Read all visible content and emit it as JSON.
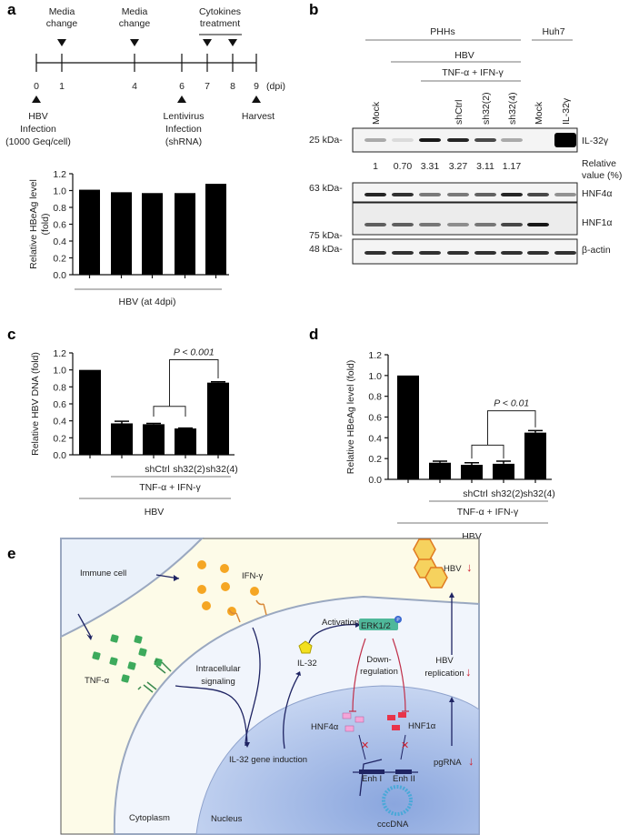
{
  "panel_labels": {
    "a": "a",
    "b": "b",
    "c": "c",
    "d": "d",
    "e": "e"
  },
  "timeline": {
    "days": [
      "0",
      "1",
      "4",
      "6",
      "7",
      "8",
      "9"
    ],
    "unit": "(dpi)",
    "top_events": [
      {
        "day": "1",
        "label": [
          "Media",
          "change"
        ]
      },
      {
        "day": "4",
        "label": [
          "Media",
          "change"
        ]
      },
      {
        "day": "7",
        "label": []
      },
      {
        "day": "8",
        "label": []
      }
    ],
    "cytokines_label": [
      "Cytokines",
      "treatment"
    ],
    "bottom_events": [
      {
        "day": "0",
        "label": [
          "HBV",
          "Infection",
          "(1000 Geq/cell)"
        ]
      },
      {
        "day": "6",
        "label": [
          "Lentivirus",
          "Infection",
          "(shRNA)"
        ]
      },
      {
        "day": "9",
        "label": [
          "Harvest"
        ]
      }
    ]
  },
  "western_blot": {
    "groups": {
      "phhs": "PHHs",
      "huh7": "Huh7",
      "hbv": "HBV",
      "cytokines": "TNF-α + IFN-γ"
    },
    "lanes": [
      "Mock",
      "",
      "",
      "shCtrl",
      "sh32(2)",
      "sh32(4)",
      "Mock",
      "IL-32γ"
    ],
    "markers": {
      "il32": "25 kDa-",
      "hnf4": "63 kDa-",
      "hnf1": "75 kDa-",
      "actin": "48 kDa-"
    },
    "bands": {
      "il32": "IL-32γ",
      "hnf4": "HNF4α",
      "hnf1": "HNF1α",
      "actin": "β-actin"
    },
    "relative_values": [
      "1",
      "0.70",
      "3.31",
      "3.27",
      "3.11",
      "1.17"
    ],
    "relative_label": [
      "Relative",
      "value (%)"
    ]
  },
  "chart_data": [
    {
      "panel": "a",
      "type": "bar",
      "categories": [
        "",
        "",
        "",
        "",
        ""
      ],
      "values": [
        1.01,
        0.98,
        0.97,
        0.97,
        1.08
      ],
      "ylabel": [
        "Relative HBeAg level",
        "(fold)"
      ],
      "xlabel": "HBV (at 4dpi)",
      "ylim": [
        0,
        1.2
      ],
      "yticks": [
        "0.0",
        "0.2",
        "0.4",
        "0.6",
        "0.8",
        "1.0",
        "1.2"
      ],
      "color": "#000000"
    },
    {
      "panel": "c",
      "type": "bar",
      "categories": [
        "",
        "",
        "shCtrl",
        "sh32(2)",
        "sh32(4)"
      ],
      "values": [
        1.0,
        0.37,
        0.36,
        0.31,
        0.85
      ],
      "errors": [
        0,
        0.025,
        0.01,
        0.005,
        0.01
      ],
      "ylabel": "Relative HBV DNA (fold)",
      "group_labels": [
        "TNF-α + IFN-γ",
        "HBV"
      ],
      "annotation": "P < 0.001",
      "ylim": [
        0,
        1.2
      ],
      "yticks": [
        "0.0",
        "0.2",
        "0.4",
        "0.6",
        "0.8",
        "1.0",
        "1.2"
      ],
      "color": "#000000"
    },
    {
      "panel": "d",
      "type": "bar",
      "categories": [
        "",
        "",
        "shCtrl",
        "sh32(2)",
        "sh32(4)"
      ],
      "values": [
        1.0,
        0.16,
        0.14,
        0.15,
        0.45
      ],
      "errors": [
        0,
        0.015,
        0.02,
        0.025,
        0.02
      ],
      "ylabel": "Relative HBeAg level (fold)",
      "group_labels": [
        "TNF-α + IFN-γ",
        "HBV"
      ],
      "annotation": "P < 0.01",
      "ylim": [
        0,
        1.2
      ],
      "yticks": [
        "0.0",
        "0.2",
        "0.4",
        "0.6",
        "0.8",
        "1.0",
        "1.2"
      ],
      "color": "#000000"
    }
  ],
  "diagram": {
    "immune_cell": "Immune cell",
    "ifn": "IFN-γ",
    "tnf": "TNF-α",
    "intracellular": [
      "Intracellular",
      "signaling"
    ],
    "activation": "Activation",
    "erk": "ERK1/2",
    "phospho": "P",
    "il32": "IL-32",
    "downreg": [
      "Down-",
      "regulation"
    ],
    "hbv_replication": [
      "HBV",
      "replication"
    ],
    "hbv": "HBV",
    "down_arrow": "↓",
    "hnf4": "HNF4α",
    "hnf1": "HNF1α",
    "gene_induction": "IL-32 gene induction",
    "pgrna": "pgRNA",
    "enh1": "Enh I",
    "enh2": "Enh II",
    "cccdna": "cccDNA",
    "cytoplasm": "Cytoplasm",
    "nucleus": "Nucleus",
    "colors": {
      "ifn": "#f5a623",
      "tnf": "#3daa5c",
      "erk": "#4fb89a",
      "hnf4": "#f4a6d8",
      "hnf1": "#e8344a",
      "down": "#d0202e",
      "nucleus": "#aac0ea",
      "background": "#fdfbe8"
    }
  }
}
